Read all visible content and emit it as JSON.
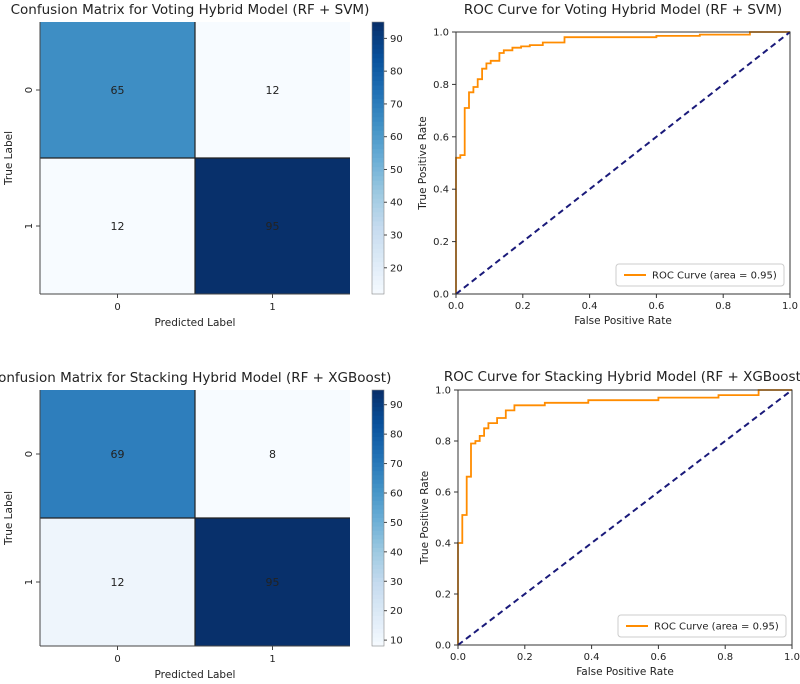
{
  "chart_data": [
    {
      "type": "heatmap",
      "title": "Confusion Matrix for Voting Hybrid Model (RF + SVM)",
      "xlabel": "Predicted Label",
      "ylabel": "True Label",
      "row_labels": [
        "0",
        "1"
      ],
      "col_labels": [
        "0",
        "1"
      ],
      "values": [
        [
          65,
          12
        ],
        [
          12,
          95
        ]
      ],
      "colorbar_ticks": [
        20,
        30,
        40,
        50,
        60,
        70,
        80,
        90
      ],
      "vmin": 12,
      "vmax": 95
    },
    {
      "type": "line",
      "title": "ROC Curve for Voting Hybrid Model (RF + SVM)",
      "xlabel": "False Positive Rate",
      "ylabel": "True Positive Rate",
      "xlim": [
        0,
        1
      ],
      "ylim": [
        0,
        1.0
      ],
      "xticks": [
        "0.0",
        "0.2",
        "0.4",
        "0.6",
        "0.8",
        "1.0"
      ],
      "yticks": [
        "0.0",
        "0.2",
        "0.4",
        "0.6",
        "0.8",
        "1.0"
      ],
      "legend": "lower right",
      "series": [
        {
          "name": "ROC Curve (area = 0.95)",
          "color": "#ff8c00",
          "x": [
            0,
            0,
            0.013,
            0.013,
            0.026,
            0.026,
            0.039,
            0.039,
            0.052,
            0.052,
            0.065,
            0.065,
            0.078,
            0.078,
            0.091,
            0.091,
            0.104,
            0.104,
            0.13,
            0.13,
            0.143,
            0.143,
            0.169,
            0.169,
            0.195,
            0.195,
            0.221,
            0.221,
            0.26,
            0.26,
            0.325,
            0.325,
            0.6,
            0.6,
            0.73,
            0.73,
            0.88,
            0.88,
            1.0
          ],
          "y": [
            0,
            0.52,
            0.52,
            0.53,
            0.53,
            0.71,
            0.71,
            0.77,
            0.77,
            0.79,
            0.79,
            0.82,
            0.82,
            0.86,
            0.86,
            0.88,
            0.88,
            0.89,
            0.89,
            0.92,
            0.92,
            0.93,
            0.93,
            0.94,
            0.94,
            0.945,
            0.945,
            0.95,
            0.95,
            0.96,
            0.96,
            0.98,
            0.98,
            0.985,
            0.985,
            0.99,
            0.99,
            1.0,
            1.0
          ]
        },
        {
          "name": "",
          "color": "#1a1a7a",
          "dashed": true,
          "x": [
            0,
            1
          ],
          "y": [
            0,
            1
          ]
        }
      ]
    },
    {
      "type": "heatmap",
      "title": "Confusion Matrix for Stacking Hybrid Model (RF + XGBoost)",
      "xlabel": "Predicted Label",
      "ylabel": "True Label",
      "row_labels": [
        "0",
        "1"
      ],
      "col_labels": [
        "0",
        "1"
      ],
      "values": [
        [
          69,
          8
        ],
        [
          12,
          95
        ]
      ],
      "colorbar_ticks": [
        10,
        20,
        30,
        40,
        50,
        60,
        70,
        80,
        90
      ],
      "vmin": 8,
      "vmax": 95
    },
    {
      "type": "line",
      "title": "ROC Curve for Stacking Hybrid Model (RF + XGBoost)",
      "xlabel": "False Positive Rate",
      "ylabel": "True Positive Rate",
      "xlim": [
        0,
        1
      ],
      "ylim": [
        0,
        1.0
      ],
      "xticks": [
        "0.0",
        "0.2",
        "0.4",
        "0.6",
        "0.8",
        "1.0"
      ],
      "yticks": [
        "0.0",
        "0.2",
        "0.4",
        "0.6",
        "0.8",
        "1.0"
      ],
      "legend": "lower right",
      "series": [
        {
          "name": "ROC Curve (area = 0.95)",
          "color": "#ff8c00",
          "x": [
            0,
            0,
            0.013,
            0.013,
            0.026,
            0.026,
            0.039,
            0.039,
            0.052,
            0.052,
            0.065,
            0.065,
            0.078,
            0.078,
            0.091,
            0.091,
            0.117,
            0.117,
            0.143,
            0.143,
            0.169,
            0.169,
            0.26,
            0.26,
            0.39,
            0.39,
            0.6,
            0.6,
            0.78,
            0.78,
            0.9,
            0.9,
            1.0
          ],
          "y": [
            0,
            0.4,
            0.4,
            0.51,
            0.51,
            0.66,
            0.66,
            0.79,
            0.79,
            0.8,
            0.8,
            0.82,
            0.82,
            0.85,
            0.85,
            0.87,
            0.87,
            0.89,
            0.89,
            0.92,
            0.92,
            0.94,
            0.94,
            0.95,
            0.95,
            0.96,
            0.96,
            0.97,
            0.97,
            0.98,
            0.98,
            1.0,
            1.0
          ]
        },
        {
          "name": "",
          "color": "#1a1a7a",
          "dashed": true,
          "x": [
            0,
            1
          ],
          "y": [
            0,
            1
          ]
        }
      ]
    }
  ]
}
